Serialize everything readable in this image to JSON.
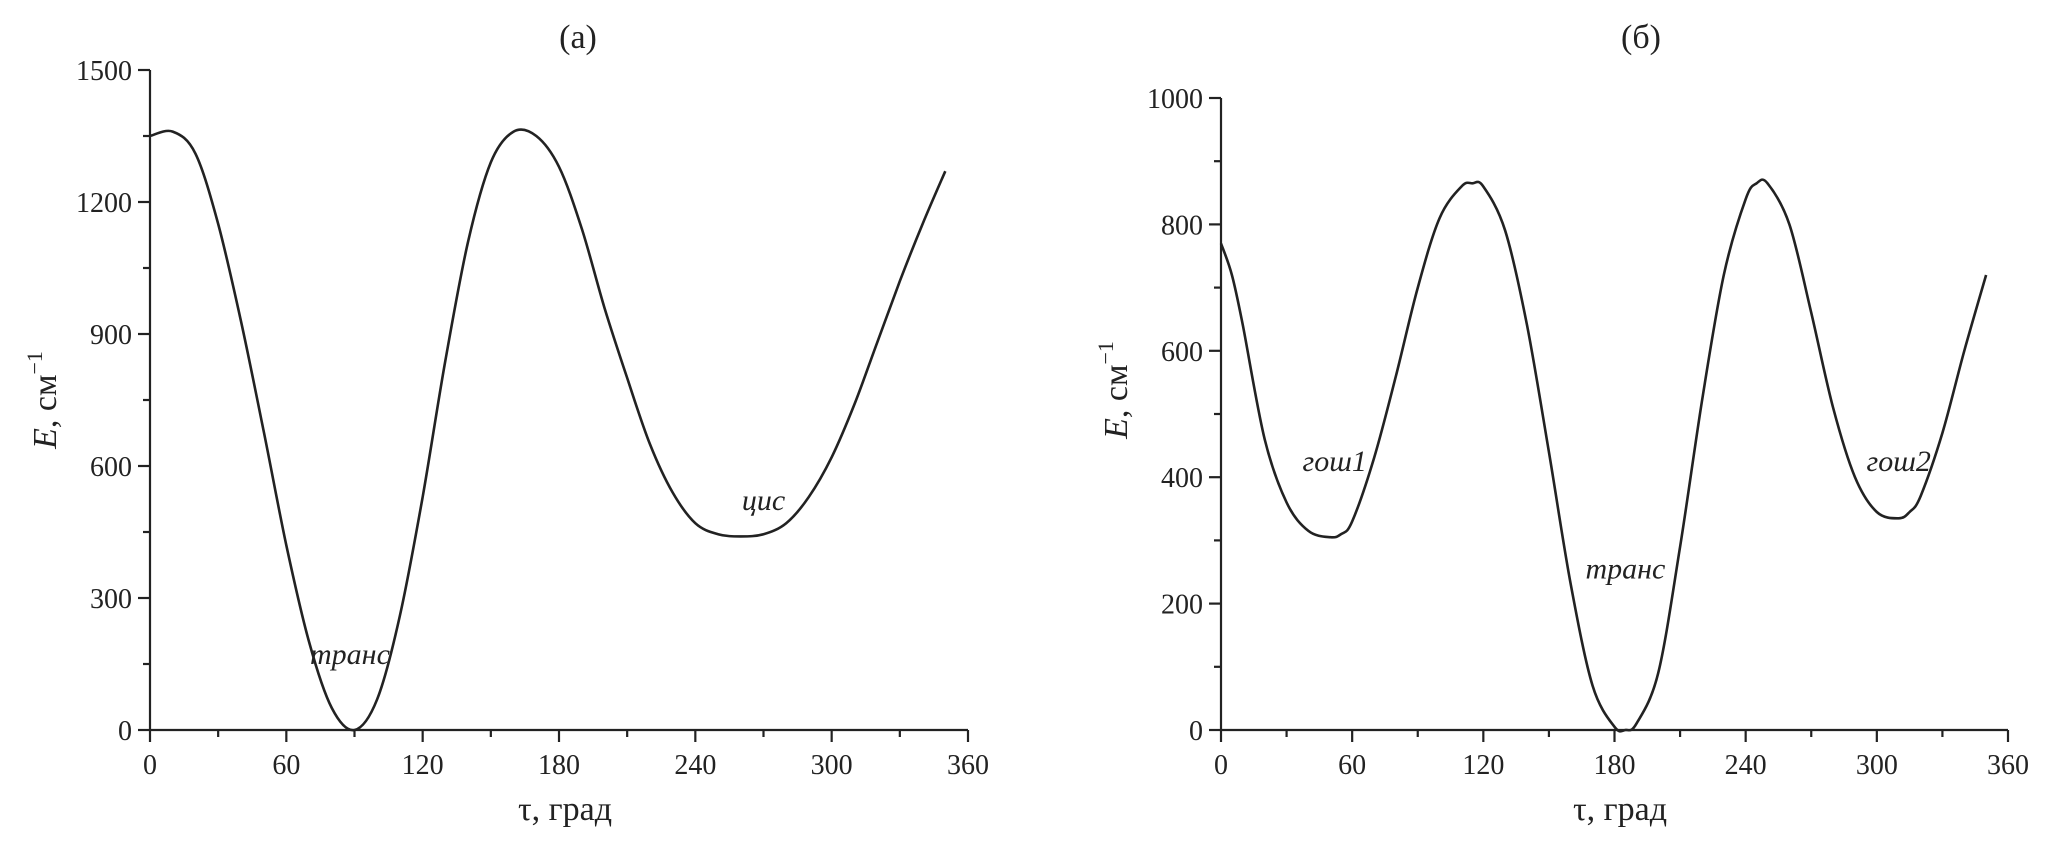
{
  "chart_data": [
    {
      "type": "line",
      "title": "(а)",
      "xlabel": "τ, град",
      "ylabel_main": "E",
      "ylabel_unit": ", см",
      "ylabel_exp": "−1",
      "xlim": [
        0,
        360
      ],
      "ylim": [
        0,
        1500
      ],
      "xticks": [
        "0",
        "60",
        "120",
        "180",
        "240",
        "300",
        "360"
      ],
      "yticks": [
        "0",
        "300",
        "600",
        "900",
        "1200",
        "1500"
      ],
      "grid": false,
      "series": [
        {
          "x": [
            0,
            10,
            20,
            30,
            40,
            50,
            60,
            70,
            80,
            90,
            100,
            110,
            120,
            130,
            140,
            150,
            160,
            170,
            180,
            190,
            200,
            210,
            220,
            230,
            240,
            250,
            260,
            270,
            280,
            290,
            300,
            310,
            320,
            330,
            340,
            350
          ],
          "y": [
            1350,
            1360,
            1310,
            1150,
            930,
            680,
            420,
            200,
            50,
            0,
            70,
            260,
            530,
            840,
            1110,
            1290,
            1360,
            1350,
            1280,
            1140,
            960,
            800,
            650,
            540,
            470,
            445,
            440,
            445,
            470,
            530,
            620,
            740,
            880,
            1020,
            1150,
            1270
          ]
        }
      ],
      "annotations": [
        {
          "text": "транс",
          "x": 88,
          "y": 150
        },
        {
          "text": "цис",
          "x": 270,
          "y": 500
        }
      ]
    },
    {
      "type": "line",
      "title": "(б)",
      "xlabel": "τ, град",
      "ylabel_main": "E",
      "ylabel_unit": ", см",
      "ylabel_exp": "−1",
      "xlim": [
        0,
        360
      ],
      "ylim": [
        0,
        1000
      ],
      "xticks": [
        "0",
        "60",
        "120",
        "180",
        "240",
        "300",
        "360"
      ],
      "yticks": [
        "0",
        "200",
        "400",
        "600",
        "800",
        "1000"
      ],
      "grid": false,
      "series": [
        {
          "x": [
            0,
            5,
            10,
            20,
            30,
            40,
            50,
            55,
            60,
            70,
            80,
            90,
            100,
            110,
            115,
            120,
            130,
            140,
            150,
            160,
            170,
            180,
            185,
            190,
            200,
            210,
            220,
            230,
            240,
            245,
            250,
            260,
            270,
            280,
            290,
            300,
            310,
            315,
            320,
            330,
            340,
            350
          ],
          "y": [
            770,
            720,
            640,
            460,
            360,
            315,
            305,
            310,
            330,
            430,
            560,
            700,
            810,
            860,
            865,
            860,
            790,
            640,
            440,
            230,
            70,
            5,
            0,
            10,
            90,
            290,
            520,
            720,
            840,
            865,
            865,
            800,
            660,
            510,
            400,
            345,
            335,
            345,
            370,
            470,
            600,
            720
          ]
        }
      ],
      "annotations": [
        {
          "text": "гош1",
          "x": 52,
          "y": 410
        },
        {
          "text": "транс",
          "x": 185,
          "y": 240
        },
        {
          "text": "гош2",
          "x": 310,
          "y": 410
        }
      ]
    }
  ]
}
